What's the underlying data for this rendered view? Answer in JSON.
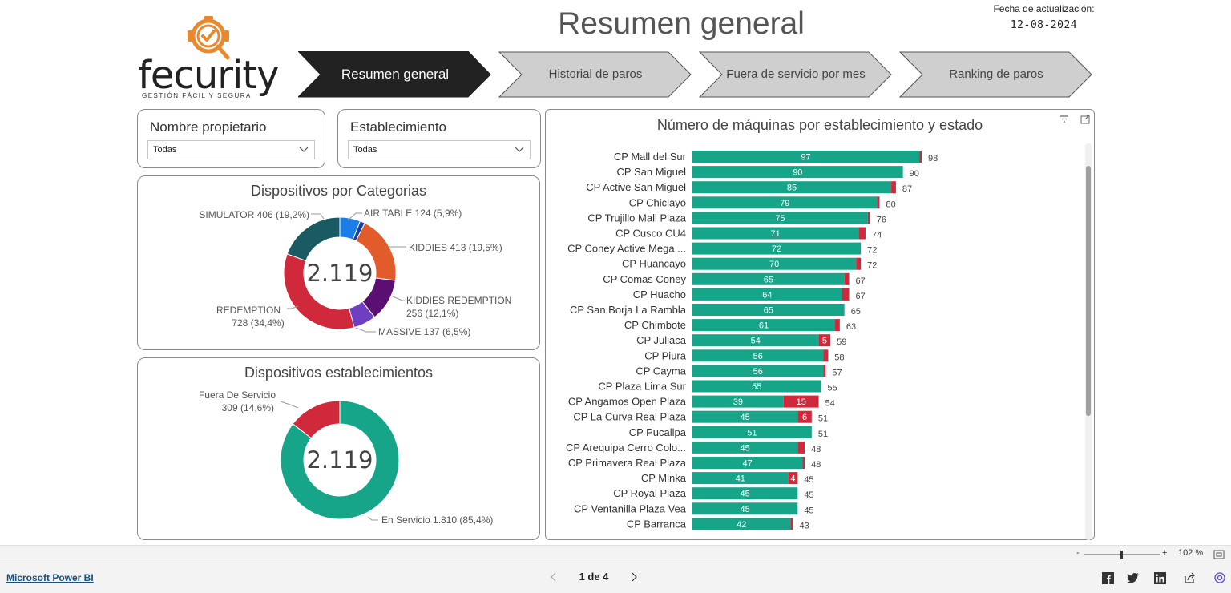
{
  "header": {
    "brand": "fecurity",
    "tagline": "GESTIÓN FÁCIL Y SEGURA",
    "page_title": "Resumen general",
    "update_label": "Fecha de actualización:",
    "update_date": "12-08-2024"
  },
  "nav": {
    "tabs": [
      {
        "label": "Resumen general",
        "active": true
      },
      {
        "label": "Historial de paros",
        "active": false
      },
      {
        "label": "Fuera de servicio por mes",
        "active": false
      },
      {
        "label": "Ranking de paros",
        "active": false
      }
    ]
  },
  "filters": {
    "owner": {
      "title": "Nombre propietario",
      "value": "Todas"
    },
    "establishment": {
      "title": "Establecimiento",
      "value": "Todas"
    }
  },
  "colors": {
    "in_service": "#17a589",
    "out_of_service": "#d0293c",
    "active_tab": "#222222",
    "inactive_tab": "#cfcfcf"
  },
  "chart_data": [
    {
      "type": "pie",
      "variant": "donut",
      "title": "Dispositivos por Categorias",
      "total_label": "2.119",
      "slices": [
        {
          "label": "AIR TABLE",
          "value": 124,
          "pct": "5,9%",
          "value_text": "AIR TABLE 124 (5,9%)",
          "color": "#1a7de8"
        },
        {
          "label": "",
          "value": 30,
          "pct": "",
          "value_text": "",
          "color": "#173f9c"
        },
        {
          "label": "KIDDIES",
          "value": 413,
          "pct": "19,5%",
          "value_text": "KIDDIES 413 (19,5%)",
          "color": "#e15b2b"
        },
        {
          "label": "KIDDIES REDEMPTION",
          "value": 256,
          "pct": "12,1%",
          "value_text": "KIDDIES REDEMPTION",
          "value_text2": "256 (12,1%)",
          "color": "#5c0f73"
        },
        {
          "label": "MASSIVE",
          "value": 137,
          "pct": "6,5%",
          "value_text": "MASSIVE 137 (6,5%)",
          "color": "#6e3fc1"
        },
        {
          "label": "REDEMPTION",
          "value": 728,
          "pct": "34,4%",
          "value_text": "REDEMPTION",
          "value_text2": "728 (34,4%)",
          "color": "#d0293c"
        },
        {
          "label": "SIMULATOR",
          "value": 406,
          "pct": "19,2%",
          "value_text": "SIMULATOR 406 (19,2%)",
          "color": "#1a5b63"
        }
      ]
    },
    {
      "type": "pie",
      "variant": "donut",
      "title": "Dispositivos establecimientos",
      "total_label": "2.119",
      "slices": [
        {
          "label": "En Servicio",
          "value": 1810,
          "pct": "85,4%",
          "value_text": "En Servicio 1.810 (85,4%)",
          "color": "#17a589"
        },
        {
          "label": "Fuera De Servicio",
          "value": 309,
          "pct": "14,6%",
          "value_text": "Fuera De Servicio",
          "value_text2": "309 (14,6%)",
          "color": "#d0293c"
        }
      ]
    },
    {
      "type": "bar",
      "orientation": "horizontal",
      "stacked": true,
      "title": "Número de máquinas por establecimiento y estado",
      "categories": [
        "CP Mall del Sur",
        "CP San Miguel",
        "CP Active San Miguel",
        "CP Chiclayo",
        "CP Trujillo Mall Plaza",
        "CP Cusco CU4",
        "CP Coney Active Mega ...",
        "CP Huancayo",
        "CP Comas Coney",
        "CP Huacho",
        "CP San Borja La Rambla",
        "CP Chimbote",
        "CP Juliaca",
        "CP Piura",
        "CP Cayma",
        "CP Plaza Lima Sur",
        "CP Angamos Open Plaza",
        "CP La Curva Real Plaza",
        "CP Pucallpa",
        "CP Arequipa Cerro Colo...",
        "CP Primavera Real Plaza",
        "CP Minka",
        "CP Royal Plaza",
        "CP Ventanilla Plaza Vea",
        "CP Barranca"
      ],
      "series": [
        {
          "name": "En Servicio",
          "values": [
            97,
            90,
            85,
            79,
            75,
            71,
            72,
            70,
            65,
            64,
            65,
            61,
            54,
            56,
            56,
            55,
            39,
            45,
            51,
            45,
            47,
            41,
            45,
            45,
            42
          ]
        },
        {
          "name": "Fuera De Servicio",
          "values": [
            1,
            0,
            2,
            1,
            1,
            3,
            0,
            2,
            2,
            3,
            0,
            2,
            5,
            2,
            1,
            0,
            15,
            6,
            0,
            3,
            1,
            4,
            0,
            0,
            1
          ]
        }
      ],
      "totals": [
        98,
        90,
        87,
        80,
        76,
        74,
        72,
        72,
        67,
        67,
        65,
        63,
        59,
        58,
        57,
        55,
        54,
        51,
        51,
        48,
        48,
        45,
        45,
        45,
        43
      ],
      "show_red_label_min": 4,
      "xlim": [
        0,
        98
      ]
    }
  ],
  "footer": {
    "powerbi_link": "Microsoft Power BI",
    "page_indicator": "1 de 4",
    "zoom": "102 %",
    "zoom_minus": "-",
    "zoom_plus": "+"
  }
}
